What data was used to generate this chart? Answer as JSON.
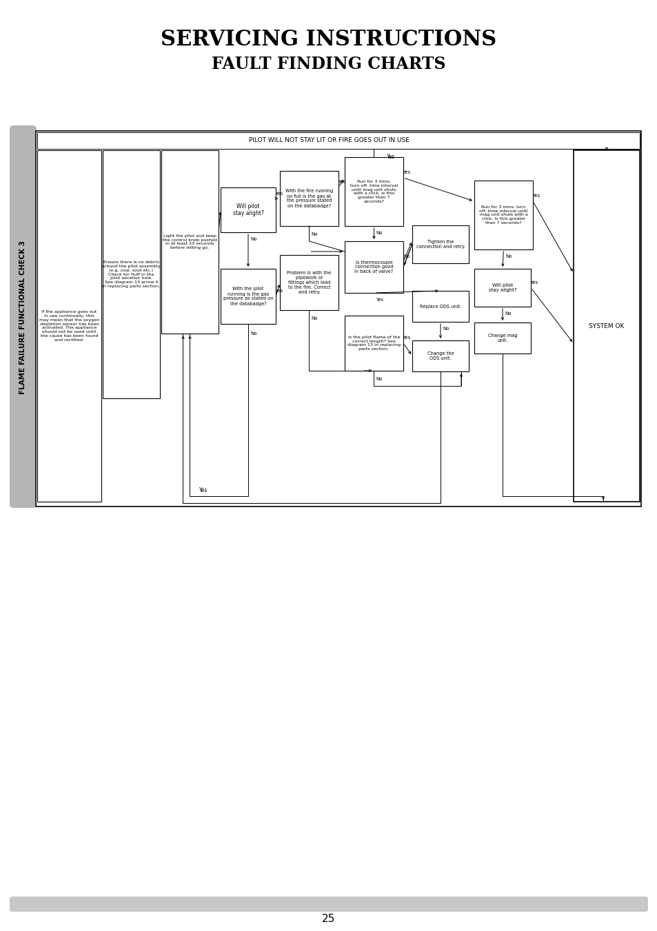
{
  "title1": "SERVICING INSTRUCTIONS",
  "title2": "FAULT FINDING CHARTS",
  "side_label": "FLAME FAILURE FUNCTIONAL CHECK 3",
  "header": "PILOT WILL NOT STAY LIT OR FIRE GOES OUT IN USE",
  "page_num": "25",
  "box_A": "If the appliance goes out in use continually, this may mean that the oxygen depletion sensor has been activated. The appliance should not be used until the cause has been found and rectified.",
  "box_B": "Ensure there is no debris around the pilot assembly.\n(e.g. coal, soot etc.) Check for fluff in the pilot aeration hole.\nSee diagram 13 arrow A in replacing parts section.",
  "box_C": "Light the pilot and keep the control knob pushed in\nat least 10 seconds before letting go.",
  "box_D": "Will pilot\nstay alight?",
  "box_E": "With the pilot\nrunning is the gas\npressure as stated on\nthe databadge?",
  "box_F": "With the fire running\non full is the gas at\nthe pressure stated\non the databadge?",
  "box_G": "Problem is with the\npipework or\nfittings which lead\nto the fire. Correct\nand retry.",
  "box_H": "Run for 3 mins,\nturn off, time interval\nuntil mag unit shuts\nwith a click. Is this\ngreater than 7\nseconds?",
  "box_I": "Is thermocouple\nconnection good\nin back of valve?",
  "box_J": "Is the pilot flame of the\ncorrect length? See\ndiagram 13 in replacing\nparts section.",
  "box_K": "Tighten the\nconnection and retry.",
  "box_L": "Replace ODS unit.",
  "box_M": "Change the\nODS unit.",
  "box_N": "Run for 3 mins, turn\noff, time interval until\nmag unit shuts with a\nclick. Is this greater\nthan 7 seconds?",
  "box_O": "Will pilot\nstay alight?",
  "box_P": "Change mag\nunit.",
  "box_SO": "SYSTEM OK"
}
